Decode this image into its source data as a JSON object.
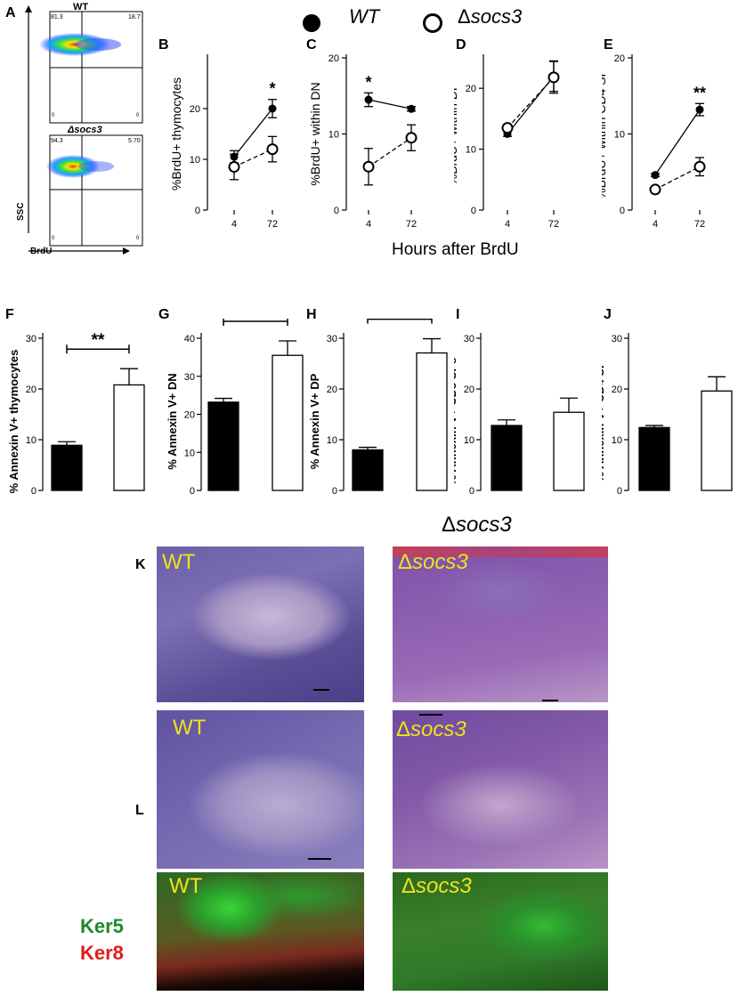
{
  "panel_letters": {
    "A": "A",
    "B": "B",
    "C": "C",
    "D": "D",
    "E": "E",
    "F": "F",
    "G": "G",
    "H": "H",
    "I": "I",
    "J": "J",
    "K": "K",
    "L": "L"
  },
  "legend": {
    "wt": "WT",
    "delta": "Δ",
    "socs3": "socs3"
  },
  "x_axis_shared_label": "Hours after BrdU",
  "flow": {
    "y_label": "SSC",
    "x_label": "BrdU",
    "plots": [
      {
        "title": "WT",
        "q_tl": "81.3",
        "q_tr": "18.7",
        "q_bl": "0",
        "q_br": "0"
      },
      {
        "title": "Δsocs3",
        "q_tl": "94.3",
        "q_tr": "5.70",
        "q_bl": "0",
        "q_br": "0"
      }
    ]
  },
  "section_title_delta": "Δ",
  "section_title_socs3": "socs3",
  "micro_labels": {
    "k_tl": "WT",
    "k_tr_delta": "Δ",
    "k_tr": "socs3",
    "k_bl": "WT",
    "k_br_delta": "Δ",
    "k_br": "socs3",
    "l_l": "WT",
    "l_r_delta": "Δ",
    "l_r": "socs3"
  },
  "fluor_labels": {
    "ker5": "Ker5",
    "ker8": "Ker8"
  },
  "colors": {
    "ker5": "#1f8a2e",
    "ker8": "#e11b1b",
    "micro_label": "#f2e21d"
  },
  "chart_data": [
    {
      "id": "B",
      "type": "line",
      "ylabel": "%BrdU+ thymocytes",
      "categories": [
        "4",
        "72"
      ],
      "ylim": [
        0,
        30
      ],
      "yticks": [
        0,
        10,
        20
      ],
      "series": [
        {
          "name": "WT",
          "values": [
            10.5,
            20
          ],
          "err": [
            1.2,
            1.8
          ],
          "fill": "filled",
          "style": "solid"
        },
        {
          "name": "Δsocs3",
          "values": [
            8.5,
            12
          ],
          "err": [
            2.5,
            2.5
          ],
          "fill": "open",
          "style": "dashed"
        }
      ],
      "annotations": [
        {
          "at": "72",
          "text": "*"
        }
      ]
    },
    {
      "id": "C",
      "type": "line",
      "ylabel": "%BrdU+ within DN",
      "categories": [
        "4",
        "72"
      ],
      "ylim": [
        0,
        20
      ],
      "yticks": [
        0,
        10,
        20
      ],
      "series": [
        {
          "name": "WT",
          "values": [
            14.5,
            13.3
          ],
          "err": [
            0.9,
            0.3
          ],
          "fill": "filled",
          "style": "solid"
        },
        {
          "name": "Δsocs3",
          "values": [
            5.7,
            9.5
          ],
          "err": [
            2.4,
            1.7
          ],
          "fill": "open",
          "style": "dashed"
        }
      ],
      "annotations": [
        {
          "at": "4",
          "text": "*"
        }
      ]
    },
    {
      "id": "D",
      "type": "line",
      "ylabel": "%BrdU+ within  DP",
      "categories": [
        "4",
        "72"
      ],
      "ylim": [
        0,
        25
      ],
      "yticks": [
        0,
        10,
        20
      ],
      "series": [
        {
          "name": "WT",
          "values": [
            12.5,
            22
          ],
          "err": [
            0.4,
            2.5
          ],
          "fill": "filled",
          "style": "solid"
        },
        {
          "name": "Δsocs3",
          "values": [
            13.5,
            21.8
          ],
          "err": [
            0.4,
            2.6
          ],
          "fill": "open",
          "style": "dashed"
        }
      ],
      "annotations": []
    },
    {
      "id": "E",
      "type": "line",
      "ylabel": "%BrdU+ within CD4 SP",
      "categories": [
        "4",
        "72"
      ],
      "ylim": [
        0,
        20
      ],
      "yticks": [
        0,
        10,
        20
      ],
      "series": [
        {
          "name": "WT",
          "values": [
            4.6,
            13.2
          ],
          "err": [
            0.2,
            0.8
          ],
          "fill": "filled",
          "style": "solid"
        },
        {
          "name": "Δsocs3",
          "values": [
            2.7,
            5.7
          ],
          "err": [
            0.2,
            1.2
          ],
          "fill": "open",
          "style": "dashed"
        }
      ],
      "annotations": [
        {
          "at": "72",
          "text": "**"
        }
      ]
    },
    {
      "id": "F",
      "type": "bar",
      "ylabel": "% Annexin V+ thymocytes",
      "ylim": [
        0,
        30
      ],
      "yticks": [
        0,
        10,
        20,
        30
      ],
      "bars": [
        {
          "name": "WT",
          "value": 8.9,
          "err": 0.7,
          "fill": "#000000"
        },
        {
          "name": "Δsocs3",
          "value": 20.8,
          "err": 3.2,
          "fill": "#ffffff"
        }
      ],
      "sig": "**"
    },
    {
      "id": "G",
      "type": "bar",
      "ylabel": "% Annexin V+  DN",
      "ylim": [
        0,
        40
      ],
      "yticks": [
        0,
        10,
        20,
        30,
        40
      ],
      "bars": [
        {
          "name": "WT",
          "value": 23.2,
          "err": 1.0,
          "fill": "#000000"
        },
        {
          "name": "Δsocs3",
          "value": 35.5,
          "err": 3.8,
          "fill": "#ffffff"
        }
      ],
      "sig": "*"
    },
    {
      "id": "H",
      "type": "bar",
      "ylabel": "% Annexin V+ DP",
      "ylim": [
        0,
        30
      ],
      "yticks": [
        0,
        10,
        20,
        30
      ],
      "bars": [
        {
          "name": "WT",
          "value": 8.0,
          "err": 0.5,
          "fill": "#000000"
        },
        {
          "name": "Δsocs3",
          "value": 27.1,
          "err": 2.8,
          "fill": "#ffffff"
        }
      ],
      "sig": "***"
    },
    {
      "id": "I",
      "type": "bar",
      "ylabel": "% Annexin V+ CD8 SPs",
      "ylim": [
        0,
        30
      ],
      "yticks": [
        0,
        10,
        20,
        30
      ],
      "bars": [
        {
          "name": "WT",
          "value": 12.8,
          "err": 1.1,
          "fill": "#000000"
        },
        {
          "name": "Δsocs3",
          "value": 15.4,
          "err": 2.8,
          "fill": "#ffffff"
        }
      ],
      "sig": ""
    },
    {
      "id": "J",
      "type": "bar",
      "ylabel": "% Annexin V+ CD4 SP",
      "ylim": [
        0,
        30
      ],
      "yticks": [
        0,
        10,
        20,
        30
      ],
      "bars": [
        {
          "name": "WT",
          "value": 12.4,
          "err": 0.4,
          "fill": "#000000"
        },
        {
          "name": "Δsocs3",
          "value": 19.6,
          "err": 2.8,
          "fill": "#ffffff"
        }
      ],
      "sig": ""
    }
  ]
}
